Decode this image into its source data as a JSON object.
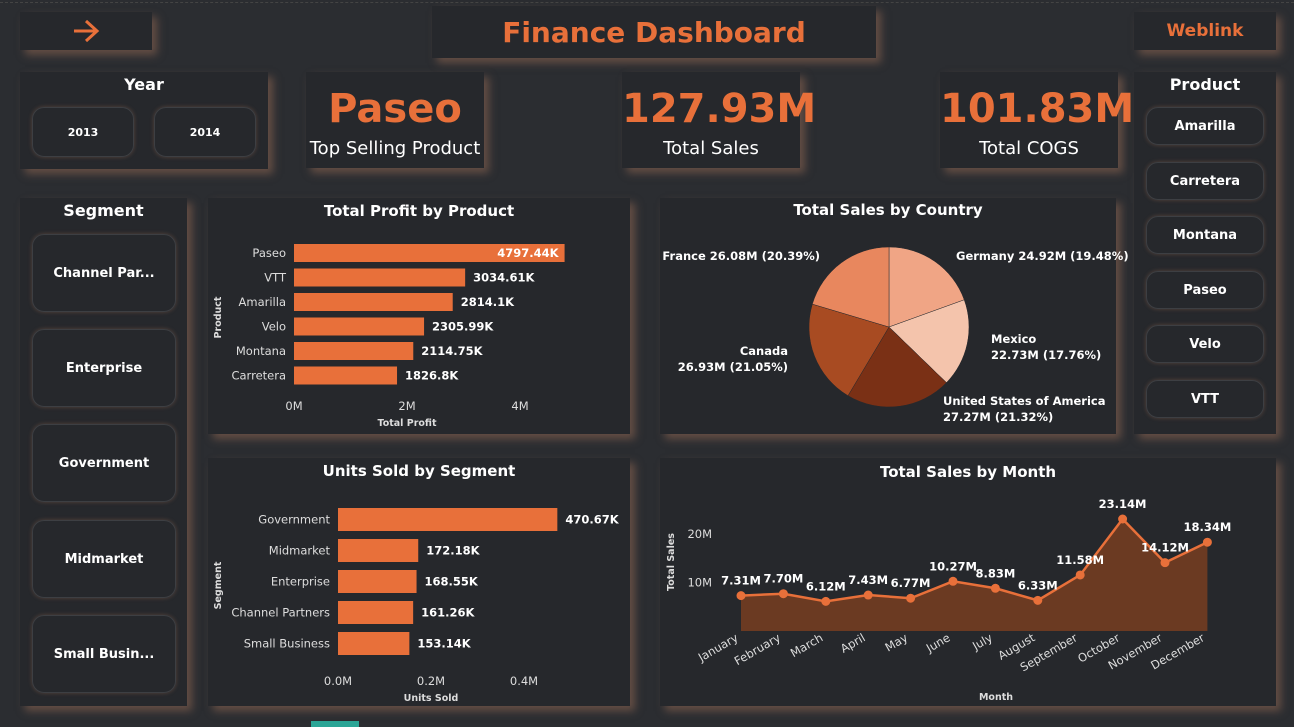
{
  "header": {
    "title": "Finance Dashboard",
    "weblink": "Weblink",
    "back_icon": "arrow-right-icon"
  },
  "year_filter": {
    "title": "Year",
    "options": [
      "2013",
      "2014"
    ]
  },
  "kpis": [
    {
      "value": "Paseo",
      "label": "Top Selling Product"
    },
    {
      "value": "127.93M",
      "label": "Total Sales"
    },
    {
      "value": "101.83M",
      "label": "Total COGS"
    }
  ],
  "product_filter": {
    "title": "Product",
    "options": [
      "Amarilla",
      "Carretera",
      "Montana",
      "Paseo",
      "Velo",
      "VTT"
    ]
  },
  "segment_filter": {
    "title": "Segment",
    "options": [
      "Channel Par...",
      "Enterprise",
      "Government",
      "Midmarket",
      "Small Busin..."
    ]
  },
  "colors": {
    "accent": "#e8703a",
    "background": "#2b2d31",
    "panel": "#26282c"
  },
  "chart_data": [
    {
      "type": "bar",
      "orientation": "horizontal",
      "title": "Total Profit by Product",
      "xlabel": "Total Profit",
      "ylabel": "Product",
      "categories": [
        "Paseo",
        "VTT",
        "Amarilla",
        "Velo",
        "Montana",
        "Carretera"
      ],
      "values": [
        4797.44,
        3034.61,
        2814.1,
        2305.99,
        2114.75,
        1826.8
      ],
      "data_labels": [
        "4797.44K",
        "3034.61K",
        "2814.1K",
        "2305.99K",
        "2114.75K",
        "1826.8K"
      ],
      "xticks": [
        "0M",
        "2M",
        "4M"
      ],
      "xlim": [
        0,
        5000
      ]
    },
    {
      "type": "pie",
      "title": "Total Sales by Country",
      "categories": [
        "Germany",
        "Mexico",
        "United States of America",
        "Canada",
        "France"
      ],
      "values": [
        24.92,
        22.73,
        27.27,
        26.93,
        26.08
      ],
      "labels": [
        [
          "Germany 24.92M (19.48%)"
        ],
        [
          "Mexico",
          "22.73M (17.76%)"
        ],
        [
          "United States of America",
          "27.27M (21.32%)"
        ],
        [
          "Canada",
          "26.93M (21.05%)"
        ],
        [
          "France 26.08M (20.39%)"
        ]
      ],
      "colors": [
        "#f0a585",
        "#f4c4ac",
        "#7a3015",
        "#a84b22",
        "#e8875e"
      ]
    },
    {
      "type": "bar",
      "orientation": "horizontal",
      "title": "Units Sold by Segment",
      "xlabel": "Units Sold",
      "ylabel": "Segment",
      "categories": [
        "Government",
        "Midmarket",
        "Enterprise",
        "Channel Partners",
        "Small Business"
      ],
      "values": [
        470.67,
        172.18,
        168.55,
        161.26,
        153.14
      ],
      "data_labels": [
        "470.67K",
        "172.18K",
        "168.55K",
        "161.26K",
        "153.14K"
      ],
      "xticks": [
        "0.0M",
        "0.2M",
        "0.4M"
      ],
      "xlim": [
        0,
        500
      ]
    },
    {
      "type": "area",
      "title": "Total Sales by Month",
      "xlabel": "Month",
      "ylabel": "Total Sales",
      "categories": [
        "January",
        "February",
        "March",
        "April",
        "May",
        "June",
        "July",
        "August",
        "September",
        "October",
        "November",
        "December"
      ],
      "values": [
        7.31,
        7.7,
        6.12,
        7.43,
        6.77,
        10.27,
        8.83,
        6.33,
        11.58,
        23.14,
        14.12,
        18.34
      ],
      "data_labels": [
        "7.31M",
        "7.70M",
        "6.12M",
        "7.43M",
        "6.77M",
        "10.27M",
        "8.83M",
        "6.33M",
        "11.58M",
        "23.14M",
        "14.12M",
        "18.34M"
      ],
      "yticks": [
        "10M",
        "20M"
      ],
      "ylim": [
        0,
        25
      ]
    }
  ]
}
